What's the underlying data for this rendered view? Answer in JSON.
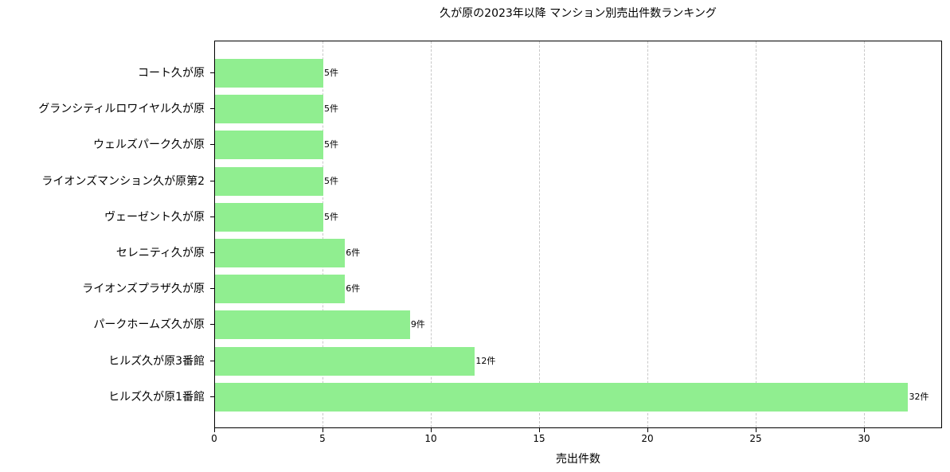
{
  "chart_data": {
    "type": "bar",
    "orientation": "horizontal",
    "title": "久が原の2023年以降 マンション別売出件数ランキング",
    "xlabel": "売出件数",
    "ylabel": "",
    "xlim": [
      0,
      33.6
    ],
    "grid": {
      "x": true,
      "y": false,
      "style": "dashed"
    },
    "bar_color": "#90ee90",
    "x_ticks": [
      0,
      5,
      10,
      15,
      20,
      25,
      30
    ],
    "categories": [
      "コート久が原",
      "グランシティルロワイヤル久が原",
      "ウェルズパーク久が原",
      "ライオンズマンション久が原第2",
      "ヴェーゼント久が原",
      "セレニティ久が原",
      "ライオンズプラザ久が原",
      "パークホームズ久が原",
      "ヒルズ久が原3番館",
      "ヒルズ久が原1番館"
    ],
    "values": [
      5,
      5,
      5,
      5,
      5,
      6,
      6,
      9,
      12,
      32
    ],
    "value_labels": [
      "5件",
      "5件",
      "5件",
      "5件",
      "5件",
      "6件",
      "6件",
      "9件",
      "12件",
      "32件"
    ]
  }
}
